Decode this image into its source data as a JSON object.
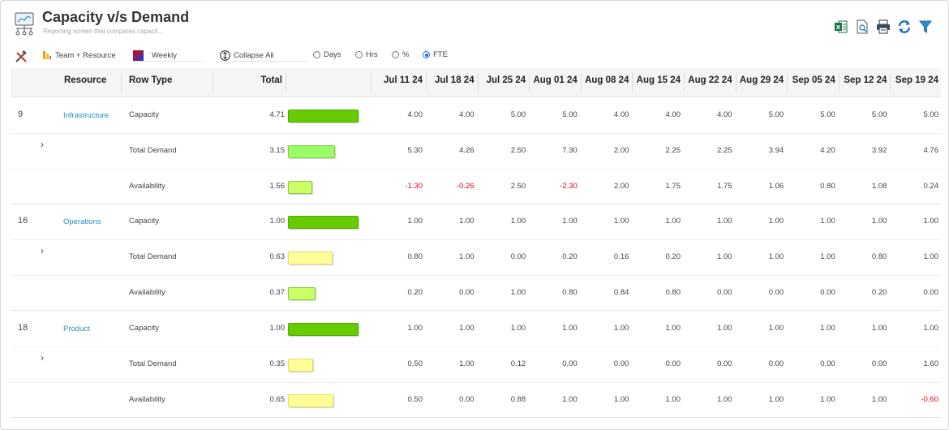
{
  "header": {
    "title": "Capacity v/s Demand",
    "subtitle": "Reporting screen that compares capacit..."
  },
  "toolbar": {
    "team_resource_label": "Team + Resource",
    "period_label": "Weekly",
    "collapse_label": "Collapse All",
    "units": [
      "Days",
      "Hrs",
      "%",
      "FTE"
    ],
    "selected_unit": "FTE"
  },
  "columns": {
    "resource": "Resource",
    "row_type": "Row Type",
    "total": "Total",
    "weeks": [
      "Jul 11 24",
      "Jul 18 24",
      "Jul 25 24",
      "Aug 01 24",
      "Aug 08 24",
      "Aug 15 24",
      "Aug 22 24",
      "Aug 29 24",
      "Sep 05 24",
      "Sep 12 24",
      "Sep 19 24"
    ]
  },
  "bar_colors": {
    "capacity": "#66cc00",
    "demand_green": "#99ff66",
    "availability_green": "#ccff66",
    "yellow": "#ffff99"
  },
  "groups": [
    {
      "id": "9",
      "name": "Infrastructure",
      "rows": [
        {
          "type": "Capacity",
          "total": "4.71",
          "bar_fill": 1.0,
          "bar_color": "#66cc00",
          "values": [
            "4.00",
            "4.00",
            "5.00",
            "5.00",
            "4.00",
            "4.00",
            "4.00",
            "5.00",
            "5.00",
            "5.00",
            "5.00"
          ]
        },
        {
          "type": "Total Demand",
          "total": "3.15",
          "bar_fill": 0.67,
          "bar_color": "#99ff66",
          "values": [
            "5.30",
            "4.26",
            "2.50",
            "7.30",
            "2.00",
            "2.25",
            "2.25",
            "3.94",
            "4.20",
            "3.92",
            "4.76"
          ]
        },
        {
          "type": "Availability",
          "total": "1.56",
          "bar_fill": 0.35,
          "bar_color": "#ccff66",
          "values": [
            "-1.30",
            "-0.26",
            "2.50",
            "-2.30",
            "2.00",
            "1.75",
            "1.75",
            "1.06",
            "0.80",
            "1.08",
            "0.24"
          ]
        }
      ]
    },
    {
      "id": "16",
      "name": "Operations",
      "rows": [
        {
          "type": "Capacity",
          "total": "1.00",
          "bar_fill": 1.0,
          "bar_color": "#66cc00",
          "values": [
            "1.00",
            "1.00",
            "1.00",
            "1.00",
            "1.00",
            "1.00",
            "1.00",
            "1.00",
            "1.00",
            "1.00",
            "1.00"
          ]
        },
        {
          "type": "Total Demand",
          "total": "0.63",
          "bar_fill": 0.63,
          "bar_color": "#ffff99",
          "values": [
            "0.80",
            "1.00",
            "0.00",
            "0.20",
            "0.16",
            "0.20",
            "1.00",
            "1.00",
            "1.00",
            "0.80",
            "1.00"
          ]
        },
        {
          "type": "Availability",
          "total": "0.37",
          "bar_fill": 0.39,
          "bar_color": "#ccff66",
          "values": [
            "0.20",
            "0.00",
            "1.00",
            "0.80",
            "0.84",
            "0.80",
            "0.00",
            "0.00",
            "0.00",
            "0.20",
            "0.00"
          ]
        }
      ]
    },
    {
      "id": "18",
      "name": "Product",
      "rows": [
        {
          "type": "Capacity",
          "total": "1.00",
          "bar_fill": 1.0,
          "bar_color": "#66cc00",
          "values": [
            "1.00",
            "1.00",
            "1.00",
            "1.00",
            "1.00",
            "1.00",
            "1.00",
            "1.00",
            "1.00",
            "1.00",
            "1.00"
          ]
        },
        {
          "type": "Total Demand",
          "total": "0.35",
          "bar_fill": 0.36,
          "bar_color": "#ffff99",
          "values": [
            "0.50",
            "1.00",
            "0.12",
            "0.00",
            "0.00",
            "0.00",
            "0.00",
            "0.00",
            "0.00",
            "0.00",
            "1.60"
          ]
        },
        {
          "type": "Availability",
          "total": "0.65",
          "bar_fill": 0.64,
          "bar_color": "#ffff99",
          "values": [
            "0.50",
            "0.00",
            "0.88",
            "1.00",
            "1.00",
            "1.00",
            "1.00",
            "1.00",
            "1.00",
            "1.00",
            "-0.60"
          ]
        }
      ]
    }
  ]
}
